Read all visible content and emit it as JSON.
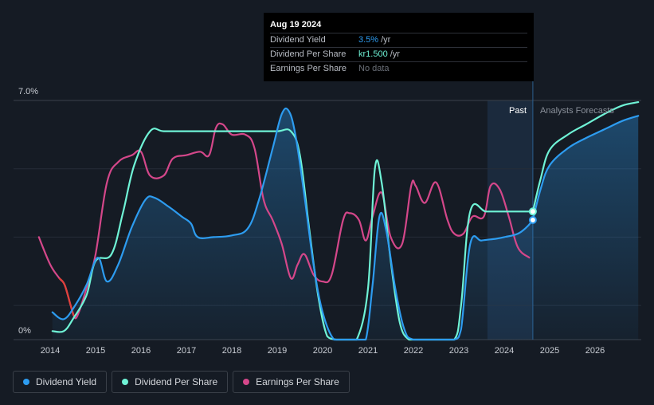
{
  "tooltip": {
    "date": "Aug 19 2024",
    "rows": [
      {
        "label": "Dividend Yield",
        "value": "3.5%",
        "unit": "/yr"
      },
      {
        "label": "Dividend Per Share",
        "value": "kr1.500",
        "unit": "/yr"
      },
      {
        "label": "Earnings Per Share",
        "value": "No data",
        "unit": ""
      }
    ]
  },
  "legend": [
    {
      "label": "Dividend Yield",
      "color": "#2d9cf0"
    },
    {
      "label": "Dividend Per Share",
      "color": "#6ff3d6"
    },
    {
      "label": "Earnings Per Share",
      "color": "#d4478a"
    }
  ],
  "regions": {
    "past": "Past",
    "forecast": "Analysts Forecasts"
  },
  "chart_data": {
    "type": "line",
    "y_tick_labels": [
      "7.0%",
      "0%"
    ],
    "ylim": [
      0,
      7.0
    ],
    "xlim": [
      2013.6,
      2026.95
    ],
    "x_tick_labels": [
      "2014",
      "2015",
      "2016",
      "2017",
      "2018",
      "2019",
      "2020",
      "2021",
      "2022",
      "2023",
      "2024",
      "2025",
      "2026"
    ],
    "x_ticks": [
      2014,
      2015,
      2016,
      2017,
      2018,
      2019,
      2020,
      2021,
      2022,
      2023,
      2024,
      2025,
      2026
    ],
    "past_region_start": 2023.63,
    "tooltip_x": 2024.63,
    "colors": {
      "yield": "#2d9cf0",
      "dps": "#6ff3d6",
      "eps": "#d4478a",
      "eps_negative": "#e0413a"
    },
    "series": [
      {
        "name": "Dividend Yield",
        "key": "yield",
        "x": [
          2014.05,
          2014.3,
          2014.55,
          2014.8,
          2015.05,
          2015.25,
          2015.5,
          2015.8,
          2016.1,
          2016.3,
          2016.6,
          2016.9,
          2017.1,
          2017.25,
          2017.6,
          2018.0,
          2018.35,
          2018.6,
          2018.9,
          2019.1,
          2019.25,
          2019.4,
          2019.6,
          2019.8,
          2020.0,
          2020.25,
          2020.5,
          2020.75,
          2020.95,
          2021.1,
          2021.25,
          2021.4,
          2021.6,
          2021.8,
          2022.0,
          2022.5,
          2022.9,
          2023.05,
          2023.25,
          2023.5,
          2023.8,
          2024.0,
          2024.3,
          2024.5,
          2024.63
        ],
        "values": [
          0.8,
          0.6,
          1.0,
          1.6,
          2.4,
          1.7,
          2.2,
          3.3,
          4.1,
          4.15,
          3.9,
          3.6,
          3.4,
          3.0,
          3.0,
          3.05,
          3.25,
          4.1,
          5.6,
          6.6,
          6.7,
          6.0,
          4.2,
          2.2,
          0.8,
          0.0,
          0.0,
          0.0,
          0.0,
          1.6,
          3.6,
          3.2,
          1.5,
          0.3,
          0.0,
          0.0,
          0.0,
          0.3,
          2.8,
          2.9,
          2.95,
          3.0,
          3.1,
          3.3,
          3.5
        ]
      },
      {
        "name": "Dividend Yield Forecast",
        "key": "yield",
        "x": [
          2024.63,
          2024.8,
          2025.0,
          2025.4,
          2025.8,
          2026.2,
          2026.6,
          2026.95
        ],
        "values": [
          3.5,
          4.4,
          5.1,
          5.6,
          5.9,
          6.15,
          6.4,
          6.55
        ]
      },
      {
        "name": "Dividend Per Share",
        "key": "dps",
        "x": [
          2014.05,
          2014.3,
          2014.5,
          2014.8,
          2015.0,
          2015.35,
          2015.6,
          2015.85,
          2016.2,
          2016.5,
          2017.0,
          2017.5,
          2018.0,
          2018.5,
          2019.0,
          2019.3,
          2019.5,
          2019.7,
          2019.9,
          2020.1,
          2020.3,
          2020.5,
          2020.75,
          2021.0,
          2021.15,
          2021.3,
          2021.5,
          2021.7,
          2021.9,
          2022.1,
          2022.5,
          2022.9,
          2023.05,
          2023.25,
          2023.6,
          2024.0,
          2024.63
        ],
        "values": [
          0.25,
          0.25,
          0.6,
          1.3,
          2.3,
          2.5,
          3.7,
          5.1,
          6.1,
          6.1,
          6.1,
          6.1,
          6.1,
          6.1,
          6.1,
          6.1,
          5.4,
          3.3,
          1.3,
          0.1,
          0.0,
          0.0,
          0.0,
          1.5,
          5.0,
          4.6,
          2.3,
          0.5,
          0.0,
          0.0,
          0.0,
          0.0,
          1.0,
          3.75,
          3.75,
          3.75,
          3.75
        ]
      },
      {
        "name": "Dividend Per Share Forecast",
        "key": "dps",
        "x": [
          2024.63,
          2024.8,
          2025.0,
          2025.4,
          2025.8,
          2026.2,
          2026.6,
          2026.95
        ],
        "values": [
          3.75,
          4.7,
          5.55,
          6.0,
          6.3,
          6.6,
          6.85,
          6.95
        ]
      },
      {
        "name": "Earnings Per Share",
        "key": "eps",
        "x": [
          2013.75,
          2014.0,
          2014.2,
          2014.32,
          2014.45,
          2014.52,
          2014.6,
          2014.8,
          2015.0,
          2015.25,
          2015.5,
          2015.8,
          2016.0,
          2016.2,
          2016.5,
          2016.7,
          2017.0,
          2017.3,
          2017.5,
          2017.65,
          2017.8,
          2018.0,
          2018.3,
          2018.5,
          2018.7,
          2018.9,
          2019.1,
          2019.3,
          2019.45,
          2019.6,
          2019.8,
          2020.0,
          2020.2,
          2020.45,
          2020.6,
          2020.8,
          2020.95,
          2021.1,
          2021.3,
          2021.5,
          2021.75,
          2021.95,
          2022.05,
          2022.25,
          2022.5,
          2022.75,
          2022.9,
          2023.1,
          2023.3,
          2023.55,
          2023.7,
          2023.9,
          2024.1,
          2024.3,
          2024.55
        ],
        "values": [
          3.0,
          2.2,
          1.8,
          1.6,
          1.0,
          0.7,
          0.7,
          1.5,
          2.5,
          4.6,
          5.2,
          5.4,
          5.5,
          4.8,
          4.8,
          5.3,
          5.4,
          5.5,
          5.4,
          6.2,
          6.3,
          6.0,
          6.0,
          5.6,
          4.1,
          3.5,
          2.8,
          1.8,
          2.2,
          2.5,
          1.9,
          1.7,
          1.9,
          3.5,
          3.7,
          3.5,
          2.9,
          3.6,
          4.3,
          3.0,
          2.8,
          4.5,
          4.5,
          4.0,
          4.6,
          3.5,
          3.1,
          3.1,
          3.6,
          3.6,
          4.5,
          4.4,
          3.6,
          2.7,
          2.4
        ]
      }
    ]
  }
}
